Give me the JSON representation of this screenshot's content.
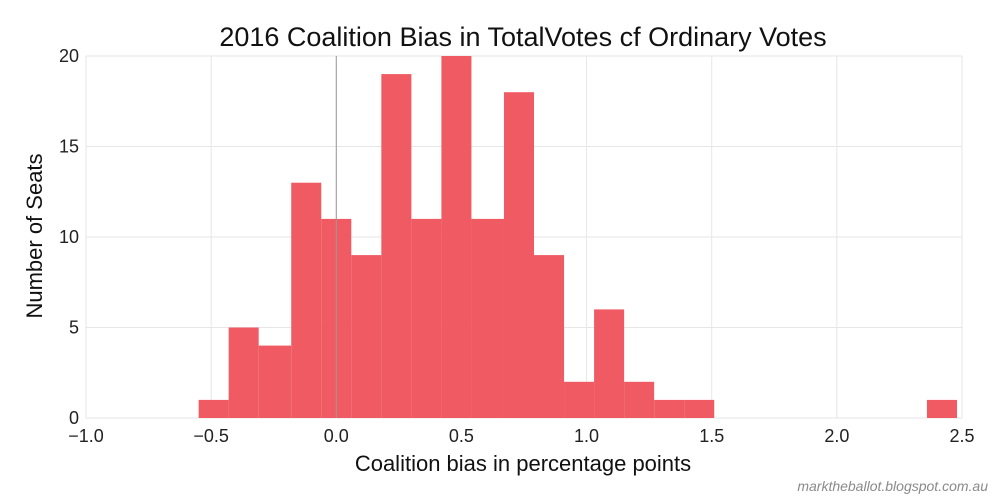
{
  "chart_data": {
    "type": "bar",
    "title": "2016 Coalition Bias in TotalVotes cf Ordinary Votes",
    "xlabel": "Coalition bias in percentage points",
    "ylabel": "Number of Seats",
    "xlim": [
      -1.0,
      2.5
    ],
    "ylim": [
      0,
      20
    ],
    "x_ticks": [
      -1.0,
      -0.5,
      0.0,
      0.5,
      1.0,
      1.5,
      2.0,
      2.5
    ],
    "x_tick_labels": [
      "−1.0",
      "−0.5",
      "0.0",
      "0.5",
      "1.0",
      "1.5",
      "2.0",
      "2.5"
    ],
    "y_ticks": [
      0,
      5,
      10,
      15,
      20
    ],
    "y_tick_labels": [
      "0",
      "5",
      "10",
      "15",
      "20"
    ],
    "grid": true,
    "reference_line_x": 0.0,
    "bar_color": "#ef5a63",
    "bins": [
      {
        "x0": -0.55,
        "x1": -0.43,
        "count": 1
      },
      {
        "x0": -0.43,
        "x1": -0.31,
        "count": 5
      },
      {
        "x0": -0.31,
        "x1": -0.18,
        "count": 4
      },
      {
        "x0": -0.18,
        "x1": -0.06,
        "count": 13
      },
      {
        "x0": -0.06,
        "x1": 0.06,
        "count": 11
      },
      {
        "x0": 0.06,
        "x1": 0.18,
        "count": 9
      },
      {
        "x0": 0.18,
        "x1": 0.3,
        "count": 19
      },
      {
        "x0": 0.3,
        "x1": 0.42,
        "count": 11
      },
      {
        "x0": 0.42,
        "x1": 0.54,
        "count": 20
      },
      {
        "x0": 0.54,
        "x1": 0.67,
        "count": 11
      },
      {
        "x0": 0.67,
        "x1": 0.79,
        "count": 18
      },
      {
        "x0": 0.79,
        "x1": 0.91,
        "count": 9
      },
      {
        "x0": 0.91,
        "x1": 1.03,
        "count": 2
      },
      {
        "x0": 1.03,
        "x1": 1.15,
        "count": 6
      },
      {
        "x0": 1.15,
        "x1": 1.27,
        "count": 2
      },
      {
        "x0": 1.27,
        "x1": 1.39,
        "count": 1
      },
      {
        "x0": 1.39,
        "x1": 1.51,
        "count": 1
      },
      {
        "x0": 2.36,
        "x1": 2.48,
        "count": 1
      }
    ]
  },
  "credit": "marktheballot.blogspot.com.au"
}
